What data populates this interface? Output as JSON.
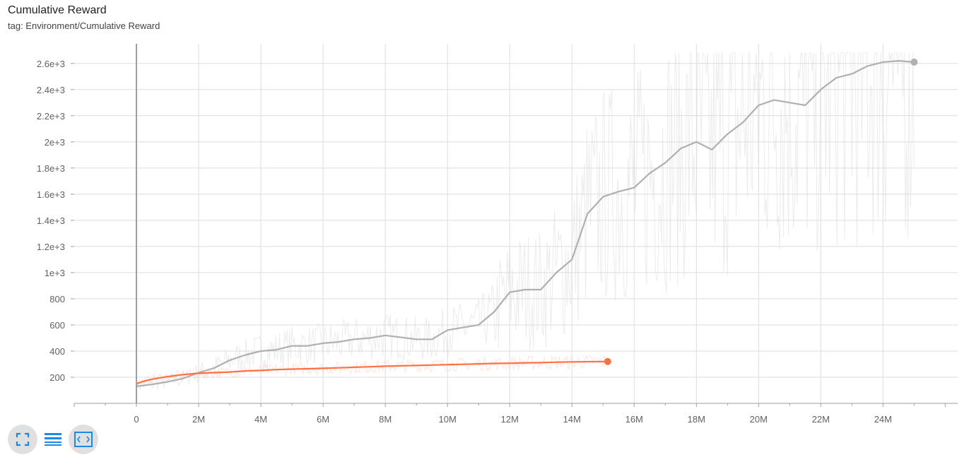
{
  "card": {
    "title": "Cumulative Reward",
    "subtitle": "tag: Environment/Cumulative Reward"
  },
  "toolbar": {
    "buttons": [
      {
        "icon": "fullscreen-icon"
      },
      {
        "icon": "data-table-icon"
      },
      {
        "icon": "fit-domain-icon"
      }
    ]
  },
  "colors": {
    "series_orange": "#ff7043",
    "series_gray": "#b0b0b0",
    "accent_blue": "#1e88e5"
  },
  "chart_data": {
    "type": "line",
    "title": "Cumulative Reward",
    "xlabel": "",
    "ylabel": "",
    "xlim": [
      -2000000,
      26400000
    ],
    "ylim": [
      0,
      2750
    ],
    "grid": true,
    "x_ticks": [
      {
        "value": 0,
        "label": "0"
      },
      {
        "value": 2000000,
        "label": "2M"
      },
      {
        "value": 4000000,
        "label": "4M"
      },
      {
        "value": 6000000,
        "label": "6M"
      },
      {
        "value": 8000000,
        "label": "8M"
      },
      {
        "value": 10000000,
        "label": "10M"
      },
      {
        "value": 12000000,
        "label": "12M"
      },
      {
        "value": 14000000,
        "label": "14M"
      },
      {
        "value": 16000000,
        "label": "16M"
      },
      {
        "value": 18000000,
        "label": "18M"
      },
      {
        "value": 20000000,
        "label": "20M"
      },
      {
        "value": 22000000,
        "label": "22M"
      },
      {
        "value": 24000000,
        "label": "24M"
      }
    ],
    "y_ticks": [
      {
        "value": 200,
        "label": "200"
      },
      {
        "value": 400,
        "label": "400"
      },
      {
        "value": 600,
        "label": "600"
      },
      {
        "value": 800,
        "label": "800"
      },
      {
        "value": 1000,
        "label": "1e+3"
      },
      {
        "value": 1200,
        "label": "1.2e+3"
      },
      {
        "value": 1400,
        "label": "1.4e+3"
      },
      {
        "value": 1600,
        "label": "1.6e+3"
      },
      {
        "value": 1800,
        "label": "1.8e+3"
      },
      {
        "value": 2000,
        "label": "2e+3"
      },
      {
        "value": 2200,
        "label": "2.2e+3"
      },
      {
        "value": 2400,
        "label": "2.4e+3"
      },
      {
        "value": 2600,
        "label": "2.6e+3"
      }
    ],
    "series": [
      {
        "color": "#b0b0b0",
        "x": [
          0,
          500000,
          1000000,
          1500000,
          2000000,
          2500000,
          3000000,
          3500000,
          4000000,
          4500000,
          5000000,
          5500000,
          6000000,
          6500000,
          7000000,
          7500000,
          8000000,
          8500000,
          9000000,
          9500000,
          10000000,
          10500000,
          11000000,
          11500000,
          12000000,
          12500000,
          13000000,
          13500000,
          14000000,
          14500000,
          15000000,
          15500000,
          16000000,
          16500000,
          17000000,
          17500000,
          18000000,
          18500000,
          19000000,
          19500000,
          20000000,
          20500000,
          21000000,
          21500000,
          22000000,
          22500000,
          23000000,
          23500000,
          24000000,
          24500000,
          25000000
        ],
        "y": [
          130,
          145,
          165,
          190,
          235,
          270,
          330,
          370,
          400,
          410,
          440,
          440,
          460,
          470,
          490,
          500,
          520,
          505,
          490,
          490,
          560,
          580,
          600,
          700,
          850,
          870,
          870,
          1000,
          1100,
          1450,
          1580,
          1620,
          1650,
          1760,
          1840,
          1950,
          2000,
          1940,
          2060,
          2150,
          2280,
          2320,
          2300,
          2280,
          2400,
          2490,
          2520,
          2580,
          2610,
          2620,
          2610
        ]
      },
      {
        "color": "#ff7043",
        "x": [
          0,
          250000,
          500000,
          1000000,
          1500000,
          2000000,
          2500000,
          3000000,
          3500000,
          4000000,
          4500000,
          5000000,
          5500000,
          6000000,
          6500000,
          7000000,
          7500000,
          8000000,
          8500000,
          9000000,
          9500000,
          10000000,
          10500000,
          11000000,
          11500000,
          12000000,
          12500000,
          13000000,
          13500000,
          14000000,
          14500000,
          15150000
        ],
        "y": [
          150,
          170,
          185,
          205,
          220,
          230,
          235,
          240,
          248,
          252,
          258,
          262,
          265,
          268,
          272,
          276,
          280,
          284,
          287,
          290,
          293,
          296,
          299,
          302,
          305,
          307,
          310,
          312,
          315,
          317,
          319,
          320
        ]
      }
    ]
  }
}
